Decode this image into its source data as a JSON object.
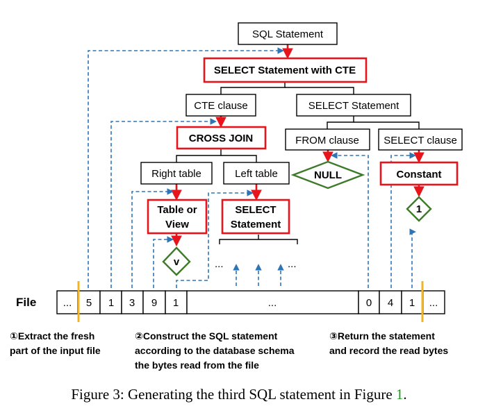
{
  "nodes": {
    "sql_statement": "SQL Statement",
    "select_with_cte": "SELECT Statement with CTE",
    "cte_clause": "CTE clause",
    "select_statement": "SELECT Statement",
    "cross_join": "CROSS JOIN",
    "from_clause": "FROM clause",
    "select_clause": "SELECT clause",
    "null": "NULL",
    "constant": "Constant",
    "one": "1",
    "right_table": "Right table",
    "left_table": "Left table",
    "table_or_view_1": "Table or",
    "table_or_view_2": "View",
    "select_stmt_1": "SELECT",
    "select_stmt_2": "Statement",
    "v": "v",
    "dots_left": "...",
    "dots_right": "..."
  },
  "file": {
    "label": "File",
    "cells": [
      "...",
      "5",
      "1",
      "3",
      "9",
      "1",
      "...",
      "0",
      "4",
      "1",
      "..."
    ]
  },
  "notes": {
    "step1_line1": "①Extract the fresh",
    "step1_line2": "part of the input file",
    "step2_line1": "②Construct the SQL statement",
    "step2_line2": "according to the database schema",
    "step2_line3": "the bytes read from the file",
    "step3_line1": "③Return the statement",
    "step3_line2": "and record the read bytes"
  },
  "caption": {
    "text": "Figure 3: Generating the third SQL statement in Figure ",
    "ref": "1",
    "end": "."
  },
  "colors": {
    "red": "#e8141c",
    "blue": "#2e75b6",
    "green": "#3d7a2a",
    "gold": "#f2b420",
    "ref_green": "#1a9a1a"
  }
}
